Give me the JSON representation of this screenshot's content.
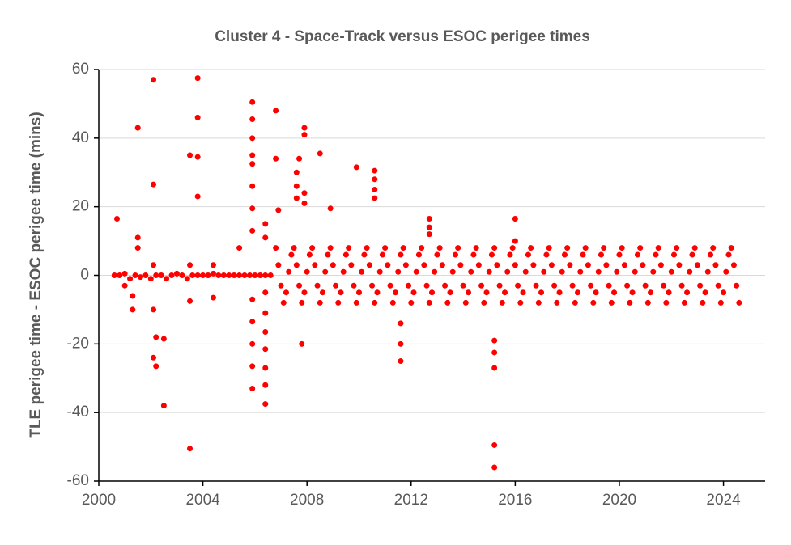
{
  "chart_data": {
    "type": "scatter",
    "title": "Cluster 4 - Space-Track versus ESOC perigee times",
    "y_label": "TLE perigee time - ESOC perigee time (mins)",
    "xlim": [
      2000,
      2025.6
    ],
    "xticks": [
      2000,
      2004,
      2008,
      2012,
      2016,
      2020,
      2024
    ],
    "ylim": [
      -60,
      60
    ],
    "yticks": [
      -60,
      -40,
      -20,
      0,
      20,
      40,
      60
    ],
    "grid": true,
    "color": "#ff0000",
    "x": [
      2000.6,
      2000.8,
      2001.0,
      2001.2,
      2001.4,
      2001.6,
      2001.8,
      2002.0,
      2002.2,
      2002.4,
      2002.6,
      2002.8,
      2003.0,
      2003.2,
      2003.4,
      2003.6,
      2003.8,
      2004.0,
      2004.2,
      2004.4,
      2004.6,
      2004.8,
      2005.0,
      2005.2,
      2005.4,
      2005.6,
      2005.8,
      2006.0,
      2006.2,
      2006.4,
      2006.6,
      2000.7,
      2001.5,
      2001.5,
      2001.5,
      2001.3,
      2001.3,
      2001.0,
      2002.1,
      2002.1,
      2002.1,
      2002.1,
      2002.2,
      2002.2,
      2002.5,
      2002.5,
      2002.1,
      2003.5,
      2003.5,
      2003.5,
      2003.5,
      2003.8,
      2003.8,
      2003.8,
      2003.8,
      2004.4,
      2004.4,
      2005.4,
      2005.9,
      2005.9,
      2005.9,
      2005.9,
      2005.9,
      2005.9,
      2005.9,
      2005.9,
      2005.9,
      2005.9,
      2005.9,
      2005.9,
      2005.9,
      2006.4,
      2006.4,
      2006.4,
      2006.4,
      2006.4,
      2006.4,
      2006.4,
      2006.4,
      2006.4,
      2006.8,
      2006.8,
      2006.9,
      2007.7,
      2007.6,
      2007.6,
      2007.6,
      2007.9,
      2007.9,
      2007.9,
      2007.9,
      2007.8,
      2008.5,
      2008.9,
      2009.9,
      2010.6,
      2010.6,
      2010.6,
      2010.6,
      2011.6,
      2011.6,
      2011.6,
      2012.7,
      2012.7,
      2012.7,
      2015.2,
      2015.2,
      2015.2,
      2015.2,
      2015.2,
      2016.0,
      2016.0,
      2006.8,
      2006.9,
      2007.0,
      2007.1,
      2007.2,
      2007.3,
      2007.4,
      2007.5,
      2007.6,
      2007.7,
      2007.8,
      2007.9,
      2008.0,
      2008.1,
      2008.2,
      2008.3,
      2008.4,
      2008.5,
      2008.6,
      2008.7,
      2008.8,
      2008.9,
      2009.0,
      2009.1,
      2009.2,
      2009.3,
      2009.4,
      2009.5,
      2009.6,
      2009.7,
      2009.8,
      2009.9,
      2010.0,
      2010.1,
      2010.2,
      2010.3,
      2010.4,
      2010.5,
      2010.6,
      2010.7,
      2010.8,
      2010.9,
      2011.0,
      2011.1,
      2011.2,
      2011.3,
      2011.4,
      2011.5,
      2011.6,
      2011.7,
      2011.8,
      2011.9,
      2012.0,
      2012.1,
      2012.2,
      2012.3,
      2012.4,
      2012.5,
      2012.6,
      2012.7,
      2012.8,
      2012.9,
      2013.0,
      2013.1,
      2013.2,
      2013.3,
      2013.4,
      2013.5,
      2013.6,
      2013.7,
      2013.8,
      2013.9,
      2014.0,
      2014.1,
      2014.2,
      2014.3,
      2014.4,
      2014.5,
      2014.6,
      2014.7,
      2014.8,
      2014.9,
      2015.0,
      2015.1,
      2015.2,
      2015.3,
      2015.4,
      2015.5,
      2015.6,
      2015.7,
      2015.8,
      2015.9,
      2016.0,
      2016.1,
      2016.2,
      2016.3,
      2016.4,
      2016.5,
      2016.6,
      2016.7,
      2016.8,
      2016.9,
      2017.0,
      2017.1,
      2017.2,
      2017.3,
      2017.4,
      2017.5,
      2017.6,
      2017.7,
      2017.8,
      2017.9,
      2018.0,
      2018.1,
      2018.2,
      2018.3,
      2018.4,
      2018.5,
      2018.6,
      2018.7,
      2018.8,
      2018.9,
      2019.0,
      2019.1,
      2019.2,
      2019.3,
      2019.4,
      2019.5,
      2019.6,
      2019.7,
      2019.8,
      2019.9,
      2020.0,
      2020.1,
      2020.2,
      2020.3,
      2020.4,
      2020.5,
      2020.6,
      2020.7,
      2020.8,
      2020.9,
      2021.0,
      2021.1,
      2021.2,
      2021.3,
      2021.4,
      2021.5,
      2021.6,
      2021.7,
      2021.8,
      2021.9,
      2022.0,
      2022.1,
      2022.2,
      2022.3,
      2022.4,
      2022.5,
      2022.6,
      2022.7,
      2022.8,
      2022.9,
      2023.0,
      2023.1,
      2023.2,
      2023.3,
      2023.4,
      2023.5,
      2023.6,
      2023.7,
      2023.8,
      2023.9,
      2024.0,
      2024.1,
      2024.2,
      2024.3,
      2024.4,
      2024.5,
      2024.6
    ],
    "values": [
      0,
      0,
      0.5,
      -1,
      0,
      -0.5,
      0,
      -1,
      0,
      0,
      -1,
      0,
      0.5,
      0,
      -1,
      0,
      0,
      0,
      0,
      0.5,
      0,
      0,
      0,
      0,
      0,
      0,
      0,
      0,
      0,
      0,
      0,
      16.5,
      43,
      11,
      8,
      -6,
      -10,
      -3,
      57,
      26.5,
      -10,
      -24,
      -26.5,
      -18,
      -18.5,
      -38,
      3,
      35,
      3,
      -7.5,
      -50.5,
      57.5,
      46,
      34.5,
      23,
      3,
      -6.5,
      8,
      50.5,
      45.5,
      40,
      35,
      32.5,
      26,
      19.5,
      13,
      -7,
      -13.5,
      -20,
      -26.5,
      -33,
      15,
      11,
      -5,
      -11,
      -16.5,
      -21.5,
      -27,
      -32,
      -37.5,
      48,
      34,
      19,
      34,
      30,
      26,
      22.5,
      43,
      41,
      24,
      21,
      -20,
      35.5,
      19.5,
      31.5,
      30.5,
      28,
      25,
      22.5,
      -14,
      -20,
      -25,
      16.5,
      14,
      12,
      -19,
      -22.5,
      -27,
      -49.5,
      -56,
      16.5,
      10,
      8,
      3,
      -3,
      -8,
      -5,
      1,
      6,
      8,
      3,
      -3,
      -8,
      -5,
      1,
      6,
      8,
      3,
      -3,
      -8,
      -5,
      1,
      6,
      8,
      3,
      -3,
      -8,
      -5,
      1,
      6,
      8,
      3,
      -3,
      -8,
      -5,
      1,
      6,
      8,
      3,
      -3,
      -8,
      -5,
      1,
      6,
      8,
      3,
      -3,
      -8,
      -5,
      1,
      6,
      8,
      3,
      -3,
      -8,
      -5,
      1,
      6,
      8,
      3,
      -3,
      -8,
      -5,
      1,
      6,
      8,
      3,
      -3,
      -8,
      -5,
      1,
      6,
      8,
      3,
      -3,
      -8,
      -5,
      1,
      6,
      8,
      3,
      -3,
      -8,
      -5,
      1,
      6,
      8,
      3,
      -3,
      -8,
      -5,
      1,
      6,
      8,
      3,
      -3,
      -8,
      -5,
      1,
      6,
      8,
      3,
      -3,
      -8,
      -5,
      1,
      6,
      8,
      3,
      -3,
      -8,
      -5,
      1,
      6,
      8,
      3,
      -3,
      -8,
      -5,
      1,
      6,
      8,
      3,
      -3,
      -8,
      -5,
      1,
      6,
      8,
      3,
      -3,
      -8,
      -5,
      1,
      6,
      8,
      3,
      -3,
      -8,
      -5,
      1,
      6,
      8,
      3,
      -3,
      -8,
      -5,
      1,
      6,
      8,
      3,
      -3,
      -8,
      -5,
      1,
      6,
      8,
      3,
      -3,
      -8,
      -5,
      1,
      6,
      8,
      3,
      -3,
      -8,
      -5,
      1,
      6,
      8,
      3,
      -3,
      -8,
      -5,
      1,
      6,
      8,
      3,
      -3,
      -8
    ]
  }
}
